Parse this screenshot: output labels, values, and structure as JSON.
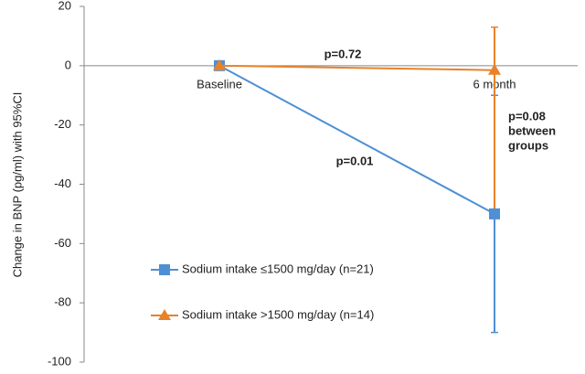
{
  "chart_data": {
    "type": "line",
    "y_label": "Change in BNP (pg/ml) with 95%CI",
    "categories": [
      "Baseline",
      "6 month"
    ],
    "series": [
      {
        "name": "Sodium intake ≤1500  mg/day (n=21)",
        "color": "#4f8fd3",
        "marker": "square",
        "values": [
          0,
          -50
        ],
        "ci_low": [
          null,
          -90
        ],
        "ci_high": [
          null,
          -10
        ]
      },
      {
        "name": "Sodium intake >1500  mg/day (n=14)",
        "color": "#e8822a",
        "marker": "triangle",
        "values": [
          0,
          -1.5
        ],
        "ci_low": [
          null,
          -50
        ],
        "ci_high": [
          null,
          13
        ]
      }
    ],
    "annotations": [
      [
        "p=0.72"
      ],
      [
        "p=0.01"
      ],
      [
        "p=0.08",
        "between",
        "groups"
      ]
    ],
    "ylim": [
      -100,
      20
    ],
    "yticks": [
      20,
      0,
      -20,
      -40,
      -60,
      -80,
      -100
    ],
    "legend": "lower-left"
  }
}
